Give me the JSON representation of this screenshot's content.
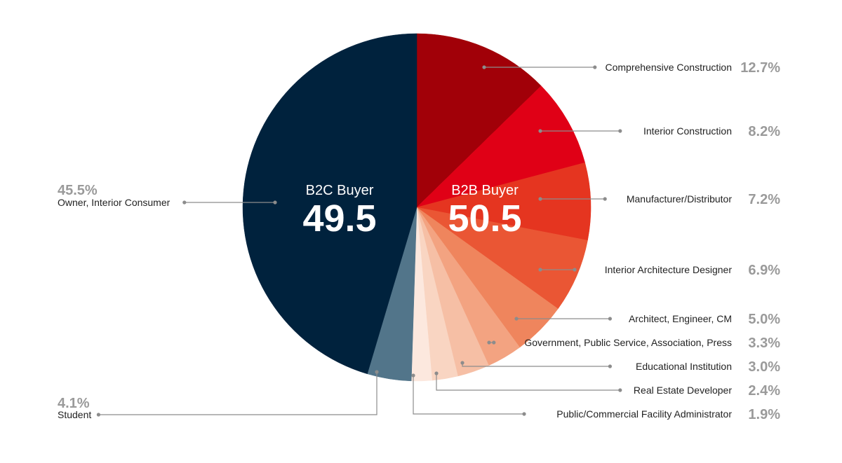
{
  "chart_data": {
    "type": "pie",
    "start_angle_deg": 0,
    "direction": "clockwise",
    "slices": [
      {
        "label": "Comprehensive Construction",
        "value": 12.7,
        "value_label": "12.7%",
        "color": "#a10008",
        "group": "b2b"
      },
      {
        "label": "Interior Construction",
        "value": 8.2,
        "value_label": "8.2%",
        "color": "#e00016",
        "group": "b2b"
      },
      {
        "label": "Manufacturer/Distributor",
        "value": 7.2,
        "value_label": "7.2%",
        "color": "#e53520",
        "group": "b2b"
      },
      {
        "label": "Interior Architecture Designer",
        "value": 6.9,
        "value_label": "6.9%",
        "color": "#ea5634",
        "group": "b2b"
      },
      {
        "label": "Architect, Engineer, CM",
        "value": 5.0,
        "value_label": "5.0%",
        "color": "#ef855d",
        "group": "b2b"
      },
      {
        "label": "Government, Public Service, Association, Press",
        "value": 3.3,
        "value_label": "3.3%",
        "color": "#f3a381",
        "group": "b2b"
      },
      {
        "label": "Educational Institution",
        "value": 3.0,
        "value_label": "3.0%",
        "color": "#f6bfa5",
        "group": "b2b"
      },
      {
        "label": "Real Estate Developer",
        "value": 2.4,
        "value_label": "2.4%",
        "color": "#f9d5c2",
        "group": "b2b"
      },
      {
        "label": "Public/Commercial Facility Administrator",
        "value": 1.9,
        "value_label": "1.9%",
        "color": "#fce8de",
        "group": "b2b"
      },
      {
        "label": "Student",
        "value": 4.1,
        "value_label": "4.1%",
        "color": "#52758a",
        "group": "b2c"
      },
      {
        "label": "Owner, Interior Consumer",
        "value": 45.5,
        "value_label": "45.5%",
        "color": "#00223d",
        "group": "b2c"
      }
    ],
    "groups": {
      "b2b": {
        "label": "B2B Buyer",
        "value": "50.5"
      },
      "b2c": {
        "label": "B2C Buyer",
        "value": "49.5"
      }
    },
    "leader_color": "#8c8c8c",
    "value_text_color": "#9a9a9a"
  }
}
